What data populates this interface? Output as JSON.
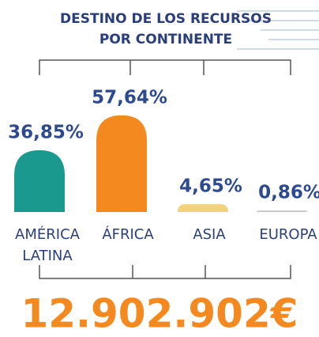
{
  "chart_data": {
    "type": "bar",
    "title": [
      "DESTINO DE LOS RECURSOS",
      "POR CONTINENTE"
    ],
    "categories": [
      "AMÉRICA LATINA",
      "ÁFRICA",
      "ASIA",
      "EUROPA"
    ],
    "values": [
      36.85,
      57.64,
      4.65,
      0.86
    ],
    "value_labels": [
      "36,85%",
      "57,64%",
      "4,65%",
      "0,86%"
    ],
    "colors": [
      "#1a9a8f",
      "#f48a1f",
      "#f2d27a",
      "#c4c4cc"
    ],
    "total": "12.902.902€"
  }
}
